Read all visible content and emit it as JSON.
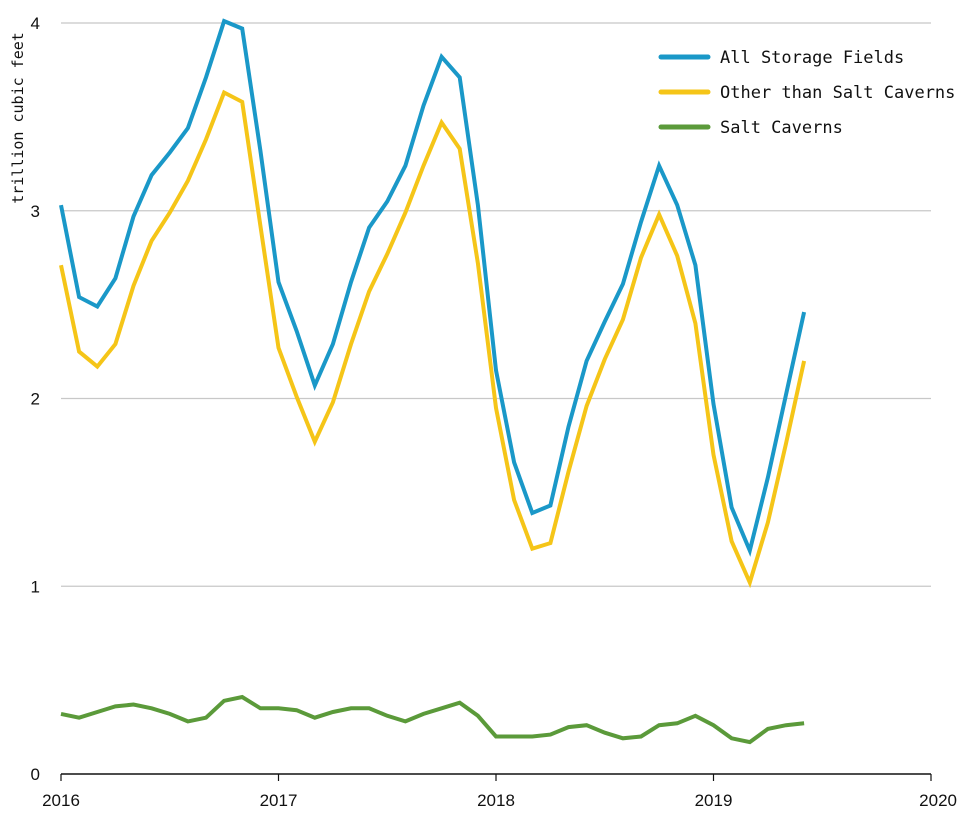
{
  "chart_data": {
    "type": "line",
    "title": "",
    "xlabel": "",
    "ylabel": "trillion cubic feet",
    "xlim": [
      2016,
      2020
    ],
    "ylim": [
      0,
      4
    ],
    "x_ticks": [
      "2016",
      "2017",
      "2018",
      "2019",
      "2020"
    ],
    "y_ticks": [
      "0",
      "1",
      "2",
      "3",
      "4"
    ],
    "grid": "horizontal",
    "legend_position": "top-right",
    "x_start": "2016-01",
    "x_step": "monthly",
    "series": [
      {
        "name": "All Storage Fields",
        "color": "#1a98c8",
        "values": [
          3.03,
          2.54,
          2.49,
          2.64,
          2.97,
          3.19,
          3.31,
          3.44,
          3.71,
          4.01,
          3.97,
          3.32,
          2.62,
          2.36,
          2.07,
          2.29,
          2.62,
          2.91,
          3.05,
          3.24,
          3.56,
          3.82,
          3.71,
          3.03,
          2.15,
          1.66,
          1.39,
          1.43,
          1.85,
          2.2,
          2.41,
          2.61,
          2.94,
          3.24,
          3.03,
          2.71,
          1.97,
          1.42,
          1.19,
          1.58,
          2.02,
          2.46
        ]
      },
      {
        "name": "Other than Salt Caverns",
        "color": "#f5c518",
        "values": [
          2.71,
          2.25,
          2.17,
          2.29,
          2.6,
          2.84,
          2.99,
          3.16,
          3.38,
          3.63,
          3.58,
          2.92,
          2.27,
          2.01,
          1.77,
          1.98,
          2.29,
          2.57,
          2.77,
          2.99,
          3.24,
          3.47,
          3.33,
          2.72,
          1.95,
          1.46,
          1.2,
          1.23,
          1.61,
          1.96,
          2.21,
          2.42,
          2.75,
          2.98,
          2.76,
          2.4,
          1.7,
          1.24,
          1.02,
          1.34,
          1.76,
          2.2
        ]
      },
      {
        "name": "Salt Caverns",
        "color": "#5b9a3a",
        "values": [
          0.32,
          0.3,
          0.33,
          0.36,
          0.37,
          0.35,
          0.32,
          0.28,
          0.3,
          0.39,
          0.41,
          0.35,
          0.35,
          0.34,
          0.3,
          0.33,
          0.35,
          0.35,
          0.31,
          0.28,
          0.32,
          0.35,
          0.38,
          0.31,
          0.2,
          0.2,
          0.2,
          0.21,
          0.25,
          0.26,
          0.22,
          0.19,
          0.2,
          0.26,
          0.27,
          0.31,
          0.26,
          0.19,
          0.17,
          0.24,
          0.26,
          0.27
        ]
      }
    ]
  }
}
